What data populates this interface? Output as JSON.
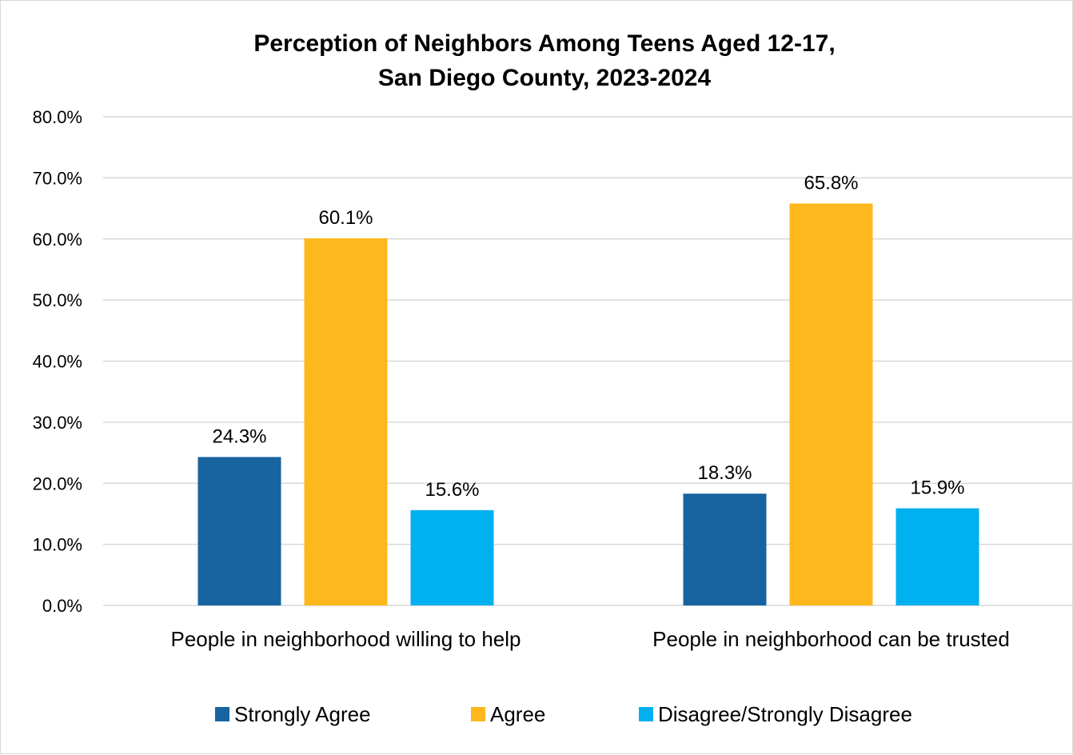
{
  "chart_data": {
    "type": "bar",
    "title": "Perception of Neighbors Among Teens Aged 12-17,",
    "subtitle": "San Diego County, 2023-2024",
    "categories": [
      "People in neighborhood willing to help",
      "People in neighborhood can be trusted"
    ],
    "series": [
      {
        "name": "Strongly Agree",
        "color": "#1764a1",
        "values": [
          24.3,
          18.3
        ],
        "labels": [
          "24.3%",
          "18.3%"
        ]
      },
      {
        "name": "Agree",
        "color": "#fcb81c",
        "values": [
          60.1,
          65.8
        ],
        "labels": [
          "60.1%",
          "65.8%"
        ]
      },
      {
        "name": "Disagree/Strongly Disagree",
        "color": "#01b0ef",
        "values": [
          15.6,
          15.9
        ],
        "labels": [
          "15.6%",
          "15.9%"
        ]
      }
    ],
    "ylim": [
      0,
      80
    ],
    "yticks": [
      0,
      10,
      20,
      30,
      40,
      50,
      60,
      70,
      80
    ],
    "ytick_labels": [
      "0.0%",
      "10.0%",
      "20.0%",
      "30.0%",
      "40.0%",
      "50.0%",
      "60.0%",
      "70.0%",
      "80.0%"
    ],
    "xlabel": "",
    "ylabel": "",
    "grid": true,
    "legend_position": "bottom"
  }
}
